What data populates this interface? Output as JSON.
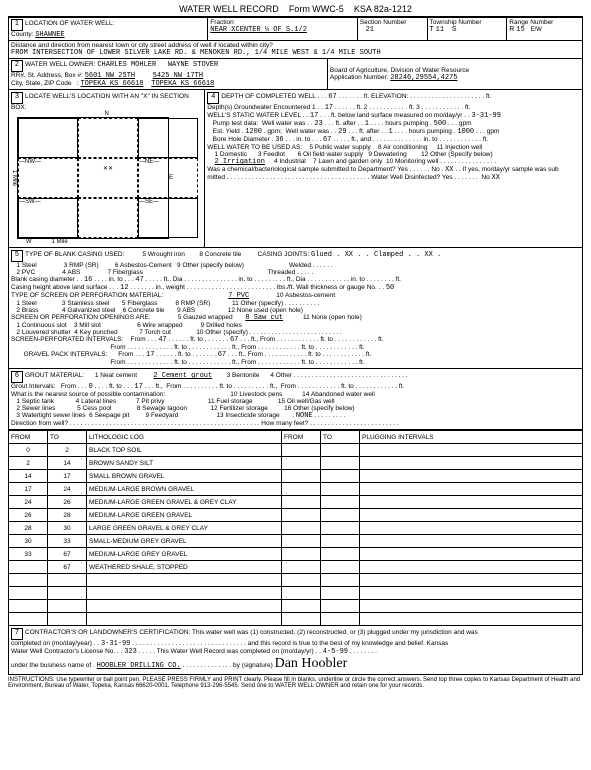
{
  "form": {
    "title": "WATER WELL RECORD",
    "formno": "Form WWC-5",
    "ksa": "KSA 82a-1212"
  },
  "loc": {
    "county": "SHAWNEE",
    "fraction": "NEAR XCENTER ¼ OF S.1/2",
    "sectionNo": "21",
    "township": "11",
    "townshipDir": "S",
    "range": "15",
    "rangeDir": "E/W",
    "distLine": "Distance and direction from nearest town or city street address of well if located within city?",
    "from": "FROM INTERSECTION OF LOWER SILVER LAKE RD. & MENOKEN RD., 1/4 MILE WEST & 1/4 MILE SOUTH"
  },
  "owner": {
    "name": "CHARLES MOHLER",
    "alt": "WAYNE STOVER",
    "addr1": "5601 NW 25TH",
    "addr2": "5425 NW 17TH",
    "city1": "TOPEKA KS 66618",
    "city2": "TOPEKA KS 66618",
    "board": "Board of Agriculture, Division of Water Resource",
    "appno": "28246,29554,4275"
  },
  "well": {
    "depth": "67",
    "gwEnc": "17",
    "swl": "17",
    "swlDate": "3-31-99",
    "pumpWW": "23",
    "pumpAfter": "1",
    "pumpHrs": "500",
    "estYield": "1200",
    "estWW": "29",
    "estAfter": "1",
    "estHrs": "1000",
    "boreDia": "36",
    "boreTo": "67",
    "useSel": "2 Irrigation",
    "chemYes": "XX",
    "disinfected": "XX"
  },
  "casing": {
    "joints": "Glued . XX . . Clamped . . XX .",
    "blankDia": "16",
    "blankTo": "47",
    "heightAbove": "12",
    "wallGauge": "50",
    "perfType": "7 PVC",
    "sawCut": "8 Saw cut",
    "screenFrom": "47",
    "screenTo": "67",
    "gravelFrom": "17",
    "gravelTo": "67"
  },
  "grout": {
    "type": "2 Cement grout",
    "from": "0",
    "to": "17",
    "nearest": "NONE"
  },
  "log": {
    "cols": [
      "FROM",
      "TO",
      "LITHOLOGIC LOG",
      "FROM",
      "TO",
      "PLUGGING INTERVALS"
    ],
    "rows": [
      [
        "0",
        "2",
        "BLACK TOP SOIL",
        "",
        "",
        ""
      ],
      [
        "2",
        "14",
        "BROWN SANDY SILT",
        "",
        "",
        ""
      ],
      [
        "14",
        "17",
        "SMALL BROWN GRAVEL",
        "",
        "",
        ""
      ],
      [
        "17",
        "24",
        "MEDIUM-LARGE BROWN GRAVEL",
        "",
        "",
        ""
      ],
      [
        "24",
        "26",
        "MEDIUM-LARGE GREEN GRAVEL & GREY CLAY",
        "",
        "",
        ""
      ],
      [
        "26",
        "28",
        "MEDIUM-LARGE GREEN GRAVEL",
        "",
        "",
        ""
      ],
      [
        "28",
        "30",
        "LARGE GREEN GRAVEL & GREY CLAY",
        "",
        "",
        ""
      ],
      [
        "30",
        "33",
        "SMALL-MEDIUM GREY GRAVEL",
        "",
        "",
        ""
      ],
      [
        "33",
        "67",
        "MEDIUM-LARGE GREY GRAVEL",
        "",
        "",
        ""
      ],
      [
        "",
        "67",
        "WEATHERED SHALE, STOPPED",
        "",
        "",
        ""
      ],
      [
        "",
        "",
        "",
        "",
        "",
        ""
      ],
      [
        "",
        "",
        "",
        "",
        "",
        ""
      ],
      [
        "",
        "",
        "",
        "",
        "",
        ""
      ],
      [
        "",
        "",
        "",
        "",
        "",
        ""
      ]
    ]
  },
  "cert": {
    "line1": "CONTRACTOR'S OR LANDOWNER'S CERTIFICATION: This water well was (1) constructed, (2) reconstructed, or (3) plugged under my jurisdiction and was",
    "date": "3-31-99",
    "lic": "323",
    "compDate": "4-5-99",
    "business": "HOOBLER DRILLING CO."
  },
  "footer": "INSTRUCTIONS: Use typewriter or ball point pen. PLEASE PRESS FIRMLY and PRINT clearly. Please fill in blanks, underline or circle the correct answers. Send top three copies to Kansas Department of Health and Environment, Bureau of Water, Topeka, Kansas 66620-0001. Telephone 913-296-5545. Send one to WATER WELL OWNER and retain one for your records."
}
